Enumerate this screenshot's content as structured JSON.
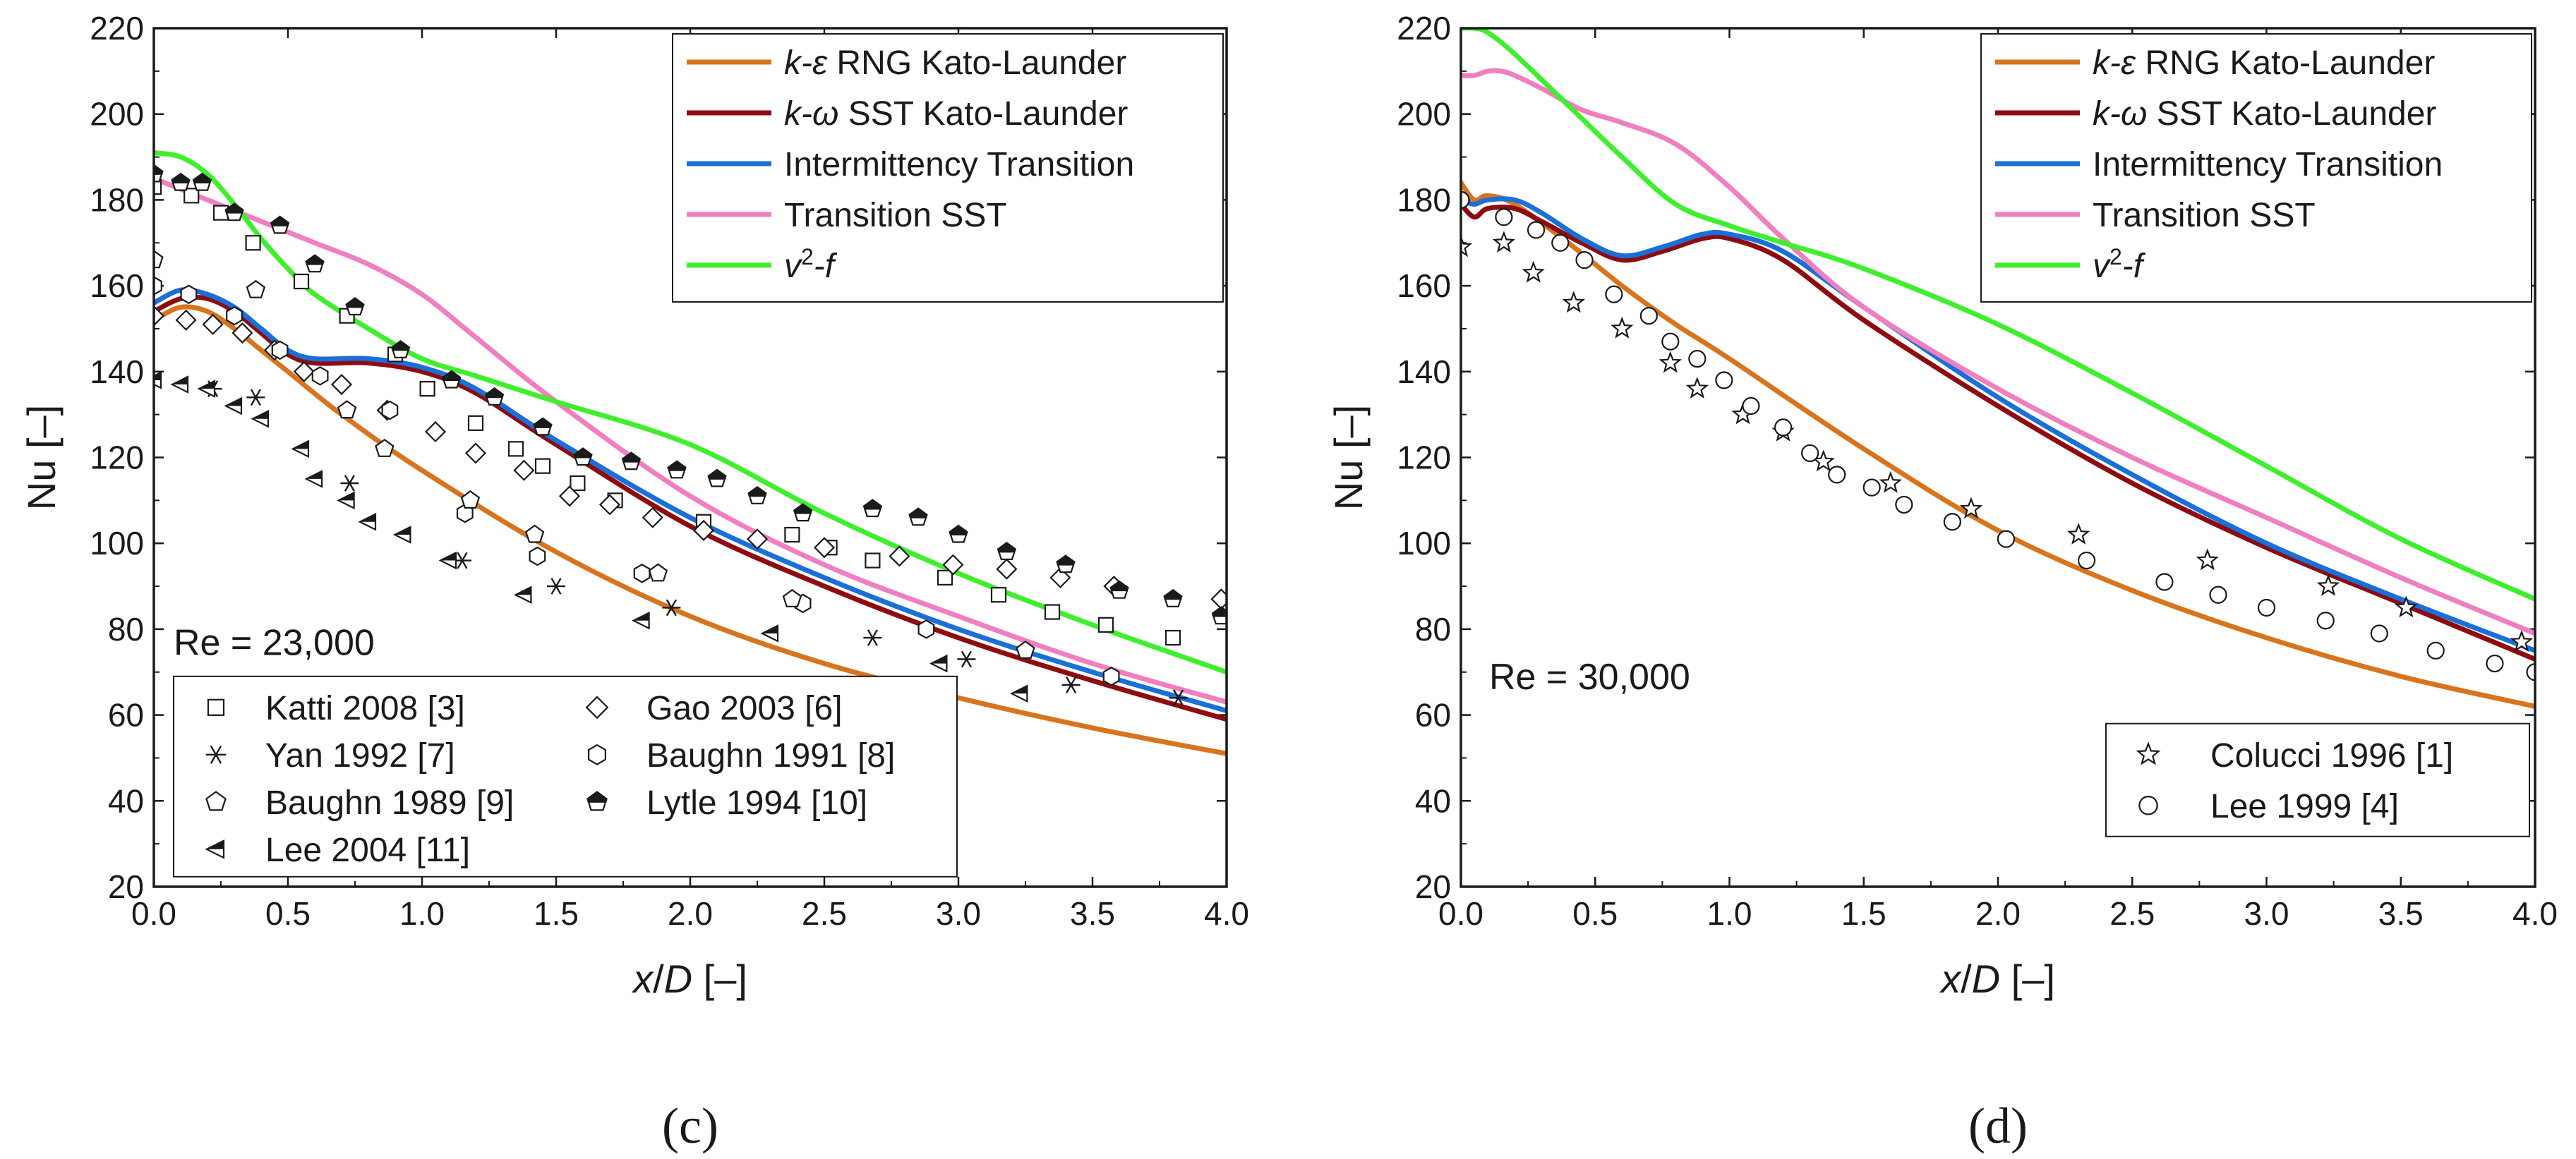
{
  "colors": {
    "ke_rng": "#d8741d",
    "kw_sst": "#8e0c10",
    "intermittency": "#1a6fd8",
    "transition_sst": "#f07ec0",
    "v2f": "#3eef2c",
    "axis": "#1a1a1a"
  },
  "chart_data": [
    {
      "type": "line",
      "panel_label": "(c)",
      "re_label": "Re = 23,000",
      "xlabel_var": "x",
      "xlabel_slash": "/",
      "xlabel_var2": "D",
      "xlabel_unit": " [–]",
      "ylabel": "Nu [–]",
      "xlim": [
        0,
        4
      ],
      "ylim": [
        20,
        220
      ],
      "xticks": [
        "0.0",
        "0.5",
        "1.0",
        "1.5",
        "2.0",
        "2.5",
        "3.0",
        "3.5",
        "4.0"
      ],
      "yticks": [
        "20",
        "40",
        "60",
        "80",
        "100",
        "120",
        "140",
        "160",
        "180",
        "200",
        "220"
      ],
      "legend_lines": [
        {
          "key": "ke_rng",
          "pre": "k",
          "sym": "-ε",
          "post": " RNG Kato-Launder"
        },
        {
          "key": "kw_sst",
          "pre": "k",
          "sym": "-ω",
          "post": " SST Kato-Launder"
        },
        {
          "key": "intermittency",
          "pre": "",
          "sym": "",
          "post": "Intermittency Transition"
        },
        {
          "key": "transition_sst",
          "pre": "",
          "sym": "",
          "post": "Transition SST"
        },
        {
          "key": "v2f",
          "pre": "v",
          "sym": "2",
          "post": "-f"
        }
      ],
      "legend_markers": [
        {
          "label": "Katti 2008 [3]",
          "marker": "square"
        },
        {
          "label": "Gao 2003 [6]",
          "marker": "diamond"
        },
        {
          "label": "Yan 1992 [7]",
          "marker": "asterisk"
        },
        {
          "label": "Baughn 1991 [8]",
          "marker": "hexagon"
        },
        {
          "label": "Baughn 1989 [9]",
          "marker": "pentagon"
        },
        {
          "label": "Lytle 1994 [10]",
          "marker": "halfpentagon"
        },
        {
          "label": "Lee 2004 [11]",
          "marker": "lefttriangle"
        }
      ],
      "series": [
        {
          "name": "k-ε RNG Kato-Launder",
          "key": "ke_rng",
          "x": [
            0,
            0.1,
            0.2,
            0.3,
            0.4,
            0.5,
            0.7,
            1.0,
            1.5,
            2.0,
            2.5,
            3.0,
            3.5,
            4.0
          ],
          "y": [
            152,
            155,
            154,
            150,
            145,
            140,
            130,
            117,
            98,
            83,
            72,
            64,
            57,
            51
          ]
        },
        {
          "name": "k-ω SST Kato-Launder",
          "key": "kw_sst",
          "x": [
            0,
            0.1,
            0.2,
            0.3,
            0.4,
            0.5,
            0.6,
            0.8,
            1.0,
            1.2,
            1.5,
            2.0,
            2.5,
            3.0,
            3.5,
            4.0
          ],
          "y": [
            154,
            157,
            157,
            154,
            149,
            144,
            142,
            142,
            140,
            135,
            123,
            104,
            90,
            78,
            68,
            59
          ]
        },
        {
          "name": "Intermittency Transition",
          "key": "intermittency",
          "x": [
            0,
            0.1,
            0.2,
            0.3,
            0.4,
            0.5,
            0.6,
            0.8,
            1.0,
            1.2,
            1.5,
            2.0,
            2.5,
            3.0,
            3.5,
            4.0
          ],
          "y": [
            156,
            159,
            158,
            155,
            150,
            145,
            143,
            143,
            141,
            136,
            124,
            106,
            92,
            80,
            70,
            61
          ]
        },
        {
          "name": "Transition SST",
          "key": "transition_sst",
          "x": [
            0,
            0.2,
            0.4,
            0.6,
            0.8,
            1.0,
            1.2,
            1.5,
            2.0,
            2.5,
            3.0,
            3.5,
            4.0
          ],
          "y": [
            185,
            180,
            175,
            170,
            165,
            158,
            148,
            133,
            111,
            95,
            83,
            72,
            63
          ]
        },
        {
          "name": "v2-f",
          "key": "v2f",
          "x": [
            0,
            0.1,
            0.2,
            0.3,
            0.4,
            0.5,
            0.6,
            0.8,
            1.0,
            1.2,
            1.5,
            2.0,
            2.5,
            3.0,
            3.5,
            4.0
          ],
          "y": [
            191,
            190,
            186,
            179,
            171,
            164,
            158,
            150,
            143,
            139,
            133,
            123,
            107,
            93,
            81,
            70
          ]
        }
      ],
      "scatter": [
        {
          "name": "Katti 2008 [3]",
          "marker": "square",
          "x": [
            0.0,
            0.14,
            0.25,
            0.37,
            0.55,
            0.72,
            0.9,
            1.02,
            1.2,
            1.35,
            1.45,
            1.58,
            1.72,
            2.05,
            2.38,
            2.52,
            2.68,
            2.95,
            3.15,
            3.35,
            3.55,
            3.8
          ],
          "y": [
            183,
            181,
            177,
            170,
            161,
            153,
            144,
            136,
            128,
            122,
            118,
            114,
            110,
            105,
            102,
            99,
            96,
            92,
            88,
            84,
            81,
            78
          ]
        },
        {
          "name": "Gao 2003 [6]",
          "marker": "diamond",
          "x": [
            0.0,
            0.12,
            0.22,
            0.33,
            0.45,
            0.56,
            0.7,
            0.87,
            1.05,
            1.2,
            1.38,
            1.55,
            1.7,
            1.86,
            2.05,
            2.25,
            2.5,
            2.78,
            2.98,
            3.18,
            3.38,
            3.58,
            3.98
          ],
          "y": [
            153,
            152,
            151,
            149,
            145,
            140,
            137,
            131,
            126,
            121,
            117,
            111,
            109,
            106,
            103,
            101,
            99,
            97,
            95,
            94,
            92,
            90,
            87
          ]
        },
        {
          "name": "Yan 1992 [7]",
          "marker": "asterisk",
          "x": [
            0.22,
            0.38,
            0.73,
            1.15,
            1.5,
            1.93,
            2.68,
            3.03,
            3.42,
            3.82
          ],
          "y": [
            136,
            134,
            114,
            96,
            90,
            85,
            78,
            73,
            67,
            64
          ]
        },
        {
          "name": "Baughn 1991 [8]",
          "marker": "hexagon",
          "x": [
            0.0,
            0.13,
            0.3,
            0.47,
            0.62,
            0.88,
            1.16,
            1.43,
            1.82,
            2.42,
            2.88,
            3.57
          ],
          "y": [
            160,
            158,
            153,
            145,
            139,
            131,
            107,
            97,
            93,
            86,
            80,
            69
          ]
        },
        {
          "name": "Baughn 1989 [9]",
          "marker": "pentagon",
          "x": [
            0.0,
            0.38,
            0.72,
            0.86,
            1.18,
            1.42,
            1.88,
            2.38,
            3.25
          ],
          "y": [
            166,
            159,
            131,
            122,
            110,
            102,
            93,
            87,
            75
          ]
        },
        {
          "name": "Lytle 1994 [10]",
          "marker": "halfpentagon",
          "x": [
            0.0,
            0.1,
            0.18,
            0.3,
            0.47,
            0.6,
            0.75,
            0.92,
            1.11,
            1.27,
            1.45,
            1.6,
            1.78,
            1.95,
            2.1,
            2.25,
            2.42,
            2.68,
            2.85,
            3.0,
            3.18,
            3.4,
            3.6,
            3.8,
            3.98
          ],
          "y": [
            186,
            184,
            184,
            177,
            174,
            165,
            155,
            145,
            138,
            134,
            127,
            120,
            119,
            117,
            115,
            111,
            107,
            108,
            106,
            102,
            98,
            95,
            89,
            87,
            83
          ]
        },
        {
          "name": "Lee 2004 [11]",
          "marker": "lefttriangle",
          "x": [
            0.0,
            0.1,
            0.2,
            0.3,
            0.4,
            0.55,
            0.6,
            0.72,
            0.8,
            0.93,
            1.1,
            1.38,
            1.82,
            2.3,
            2.93,
            3.23
          ],
          "y": [
            138,
            137,
            136,
            132,
            129,
            122,
            115,
            110,
            105,
            102,
            96,
            88,
            82,
            79,
            72,
            65
          ]
        }
      ]
    },
    {
      "type": "line",
      "panel_label": "(d)",
      "re_label": "Re = 30,000",
      "xlabel_var": "x",
      "xlabel_slash": "/",
      "xlabel_var2": "D",
      "xlabel_unit": " [–]",
      "ylabel": "Nu [–]",
      "xlim": [
        0,
        4
      ],
      "ylim": [
        20,
        220
      ],
      "xticks": [
        "0.0",
        "0.5",
        "1.0",
        "1.5",
        "2.0",
        "2.5",
        "3.0",
        "3.5",
        "4.0"
      ],
      "yticks": [
        "20",
        "40",
        "60",
        "80",
        "100",
        "120",
        "140",
        "160",
        "180",
        "200",
        "220"
      ],
      "legend_lines": [
        {
          "key": "ke_rng",
          "pre": "k",
          "sym": "-ε",
          "post": " RNG Kato-Launder"
        },
        {
          "key": "kw_sst",
          "pre": "k",
          "sym": "-ω",
          "post": " SST Kato-Launder"
        },
        {
          "key": "intermittency",
          "pre": "",
          "sym": "",
          "post": "Intermittency Transition"
        },
        {
          "key": "transition_sst",
          "pre": "",
          "sym": "",
          "post": "Transition SST"
        },
        {
          "key": "v2f",
          "pre": "v",
          "sym": "2",
          "post": "-f"
        }
      ],
      "legend_markers": [
        {
          "label": "Colucci 1996 [1]",
          "marker": "star"
        },
        {
          "label": "Lee 1999 [4]",
          "marker": "circle"
        }
      ],
      "series": [
        {
          "name": "k-ε RNG Kato-Launder",
          "key": "ke_rng",
          "x": [
            0,
            0.05,
            0.1,
            0.2,
            0.4,
            0.6,
            0.8,
            1.0,
            1.5,
            2.0,
            2.5,
            3.0,
            3.5,
            4.0
          ],
          "y": [
            184,
            180,
            181,
            179,
            170,
            160,
            151,
            143,
            122,
            103,
            89,
            78,
            69,
            62
          ]
        },
        {
          "name": "k-ω SST Kato-Launder",
          "key": "kw_sst",
          "x": [
            0,
            0.05,
            0.1,
            0.2,
            0.3,
            0.45,
            0.6,
            0.75,
            0.9,
            1.0,
            1.2,
            1.5,
            2.0,
            2.5,
            3.0,
            3.5,
            4.0
          ],
          "y": [
            179,
            176,
            178,
            178,
            175,
            170,
            166,
            168,
            171,
            171,
            166,
            152,
            132,
            114,
            99,
            86,
            73
          ]
        },
        {
          "name": "Intermittency Transition",
          "key": "intermittency",
          "x": [
            0,
            0.05,
            0.1,
            0.2,
            0.3,
            0.45,
            0.6,
            0.75,
            0.9,
            1.0,
            1.2,
            1.5,
            2.0,
            2.5,
            3.0,
            3.5,
            4.0
          ],
          "y": [
            180,
            179,
            180,
            180,
            177,
            171,
            167,
            169,
            172,
            172,
            168,
            155,
            134,
            116,
            100,
            87,
            75
          ]
        },
        {
          "name": "Transition SST",
          "key": "transition_sst",
          "x": [
            0,
            0.05,
            0.1,
            0.15,
            0.2,
            0.3,
            0.45,
            0.6,
            0.8,
            1.0,
            1.2,
            1.5,
            2.0,
            2.5,
            3.0,
            3.5,
            4.0
          ],
          "y": [
            209,
            209,
            210,
            210,
            209,
            206,
            201,
            198,
            193,
            183,
            171,
            155,
            136,
            120,
            106,
            92,
            79
          ]
        },
        {
          "name": "v2-f",
          "key": "v2f",
          "x": [
            0,
            0.05,
            0.1,
            0.2,
            0.4,
            0.6,
            0.8,
            1.0,
            1.2,
            1.5,
            2.0,
            2.5,
            3.0,
            3.5,
            4.0
          ],
          "y": [
            220,
            220,
            219,
            214,
            202,
            190,
            179,
            174,
            170,
            164,
            151,
            135,
            118,
            101,
            87
          ]
        }
      ],
      "scatter": [
        {
          "name": "Colucci 1996 [1]",
          "marker": "star",
          "x": [
            0.0,
            0.16,
            0.27,
            0.42,
            0.6,
            0.78,
            0.88,
            1.05,
            1.2,
            1.35,
            1.6,
            1.9,
            2.3,
            2.78,
            3.23,
            3.52,
            3.95
          ],
          "y": [
            169,
            170,
            163,
            156,
            150,
            142,
            136,
            130,
            126,
            119,
            114,
            108,
            102,
            96,
            90,
            85,
            77
          ]
        },
        {
          "name": "Lee 1999 [4]",
          "marker": "circle",
          "x": [
            0.0,
            0.16,
            0.28,
            0.37,
            0.46,
            0.57,
            0.7,
            0.78,
            0.88,
            0.98,
            1.08,
            1.2,
            1.3,
            1.4,
            1.53,
            1.65,
            1.83,
            2.03,
            2.33,
            2.62,
            2.82,
            3.0,
            3.22,
            3.42,
            3.63,
            3.85,
            4.0
          ],
          "y": [
            180,
            176,
            173,
            170,
            166,
            158,
            153,
            147,
            143,
            138,
            132,
            127,
            121,
            116,
            113,
            109,
            105,
            101,
            96,
            91,
            88,
            85,
            82,
            79,
            75,
            72,
            70
          ]
        }
      ]
    }
  ]
}
